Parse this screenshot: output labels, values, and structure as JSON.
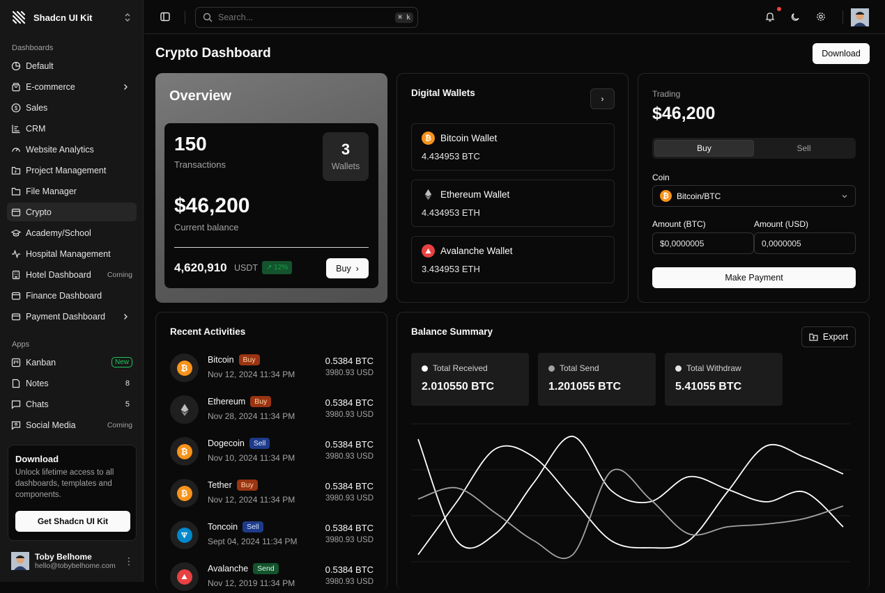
{
  "app": {
    "name": "Shadcn UI Kit"
  },
  "sidebar": {
    "section_dashboards": "Dashboards",
    "dashboards": [
      {
        "label": "Default",
        "icon": "pie-chart-icon"
      },
      {
        "label": "E-commerce",
        "icon": "shopping-bag-icon",
        "has_submenu": true
      },
      {
        "label": "Sales",
        "icon": "dollar-circle-icon"
      },
      {
        "label": "CRM",
        "icon": "chart-bars-icon"
      },
      {
        "label": "Website Analytics",
        "icon": "gauge-icon"
      },
      {
        "label": "Project Management",
        "icon": "folder-dot-icon"
      },
      {
        "label": "File Manager",
        "icon": "folder-icon"
      },
      {
        "label": "Crypto",
        "icon": "wallet-icon",
        "active": true
      },
      {
        "label": "Academy/School",
        "icon": "graduation-cap-icon"
      },
      {
        "label": "Hospital Management",
        "icon": "activity-icon"
      },
      {
        "label": "Hotel Dashboard",
        "icon": "building-icon",
        "tag": "Coming"
      },
      {
        "label": "Finance Dashboard",
        "icon": "wallet-card-icon"
      },
      {
        "label": "Payment Dashboard",
        "icon": "credit-card-icon",
        "has_submenu": true
      }
    ],
    "section_apps": "Apps",
    "apps": [
      {
        "label": "Kanban",
        "icon": "kanban-icon",
        "badge": "New"
      },
      {
        "label": "Notes",
        "icon": "note-icon",
        "count": "8"
      },
      {
        "label": "Chats",
        "icon": "chat-icon",
        "count": "5"
      },
      {
        "label": "Social Media",
        "icon": "social-icon",
        "tag": "Coming"
      }
    ],
    "promo": {
      "title": "Download",
      "text": "Unlock lifetime access to all dashboards, templates and components.",
      "button": "Get Shadcn UI Kit"
    },
    "user": {
      "name": "Toby Belhome",
      "email": "hello@tobybelhome.com"
    }
  },
  "header": {
    "search_placeholder": "Search...",
    "search_shortcut": "⌘ k"
  },
  "page": {
    "title": "Crypto Dashboard",
    "download_label": "Download"
  },
  "overview": {
    "title": "Overview",
    "transactions_value": "150",
    "transactions_label": "Transactions",
    "wallets_value": "3",
    "wallets_label": "Wallets",
    "balance_value": "$46,200",
    "balance_label": "Current balance",
    "usdt_value": "4,620,910",
    "usdt_unit": "USDT",
    "change_badge": "↗ 12%",
    "buy_label": "Buy"
  },
  "digital_wallets": {
    "title": "Digital Wallets",
    "items": [
      {
        "name": "Bitcoin Wallet",
        "amount": "4.434953 BTC",
        "icon": "bitcoin-icon"
      },
      {
        "name": "Ethereum Wallet",
        "amount": "4.434953 ETH",
        "icon": "ethereum-icon"
      },
      {
        "name": "Avalanche Wallet",
        "amount": "3.434953 ETH",
        "icon": "avalanche-icon"
      }
    ]
  },
  "trading": {
    "label": "Trading",
    "amount": "$46,200",
    "tab_buy": "Buy",
    "tab_sell": "Sell",
    "coin_label": "Coin",
    "coin_selected": "Bitcoin/BTC",
    "amount_btc_label": "Amount (BTC)",
    "amount_usd_label": "Amount (USD)",
    "amount_btc_value": "$0,0000005",
    "amount_usd_value": "0,0000005",
    "pay_label": "Make Payment"
  },
  "activities": {
    "title": "Recent Activities",
    "items": [
      {
        "coin": "Bitcoin",
        "type": "Buy",
        "date": "Nov 12, 2024 11:34 PM",
        "amount": "0.5384 BTC",
        "usd": "3980.93 USD",
        "icon": "bitcoin-icon"
      },
      {
        "coin": "Ethereum",
        "type": "Buy",
        "date": "Nov 28, 2024 11:34 PM",
        "amount": "0.5384 BTC",
        "usd": "3980.93 USD",
        "icon": "ethereum-icon"
      },
      {
        "coin": "Dogecoin",
        "type": "Sell",
        "date": "Nov 10, 2024 11:34 PM",
        "amount": "0.5384 BTC",
        "usd": "3980.93 USD",
        "icon": "bitcoin-icon"
      },
      {
        "coin": "Tether",
        "type": "Buy",
        "date": "Nov 12, 2024 11:34 PM",
        "amount": "0.5384 BTC",
        "usd": "3980.93 USD",
        "icon": "bitcoin-icon"
      },
      {
        "coin": "Toncoin",
        "type": "Sell",
        "date": "Sept 04, 2024 11:34 PM",
        "amount": "0.5384 BTC",
        "usd": "3980.93 USD",
        "icon": "toncoin-icon"
      },
      {
        "coin": "Avalanche",
        "type": "Send",
        "date": "Nov 12, 2019 11:34 PM",
        "amount": "0.5384 BTC",
        "usd": "3980.93 USD",
        "icon": "avalanche-icon"
      }
    ]
  },
  "balance_summary": {
    "title": "Balance Summary",
    "export_label": "Export",
    "stats": [
      {
        "label": "Total Received",
        "value": "2.010550 BTC",
        "color": "#ffffff"
      },
      {
        "label": "Total Send",
        "value": "1.201055 BTC",
        "color": "#a3a3a3"
      },
      {
        "label": "Total Withdraw",
        "value": "5.41055 BTC",
        "color": "#e5e5e5"
      }
    ]
  },
  "chart_data": {
    "type": "line",
    "grid": true,
    "series": [
      {
        "color": "#ffffff",
        "values": [
          10,
          48,
          86,
          80,
          50,
          20,
          15,
          20,
          55,
          88,
          80,
          68
        ]
      },
      {
        "color": "#ffffff",
        "values": [
          93,
          20,
          25,
          62,
          95,
          56,
          48,
          66,
          57,
          48,
          55,
          30
        ]
      },
      {
        "color": "#a3a3a3",
        "values": [
          50,
          58,
          40,
          20,
          10,
          70,
          50,
          25,
          30,
          32,
          36,
          45
        ]
      }
    ]
  }
}
